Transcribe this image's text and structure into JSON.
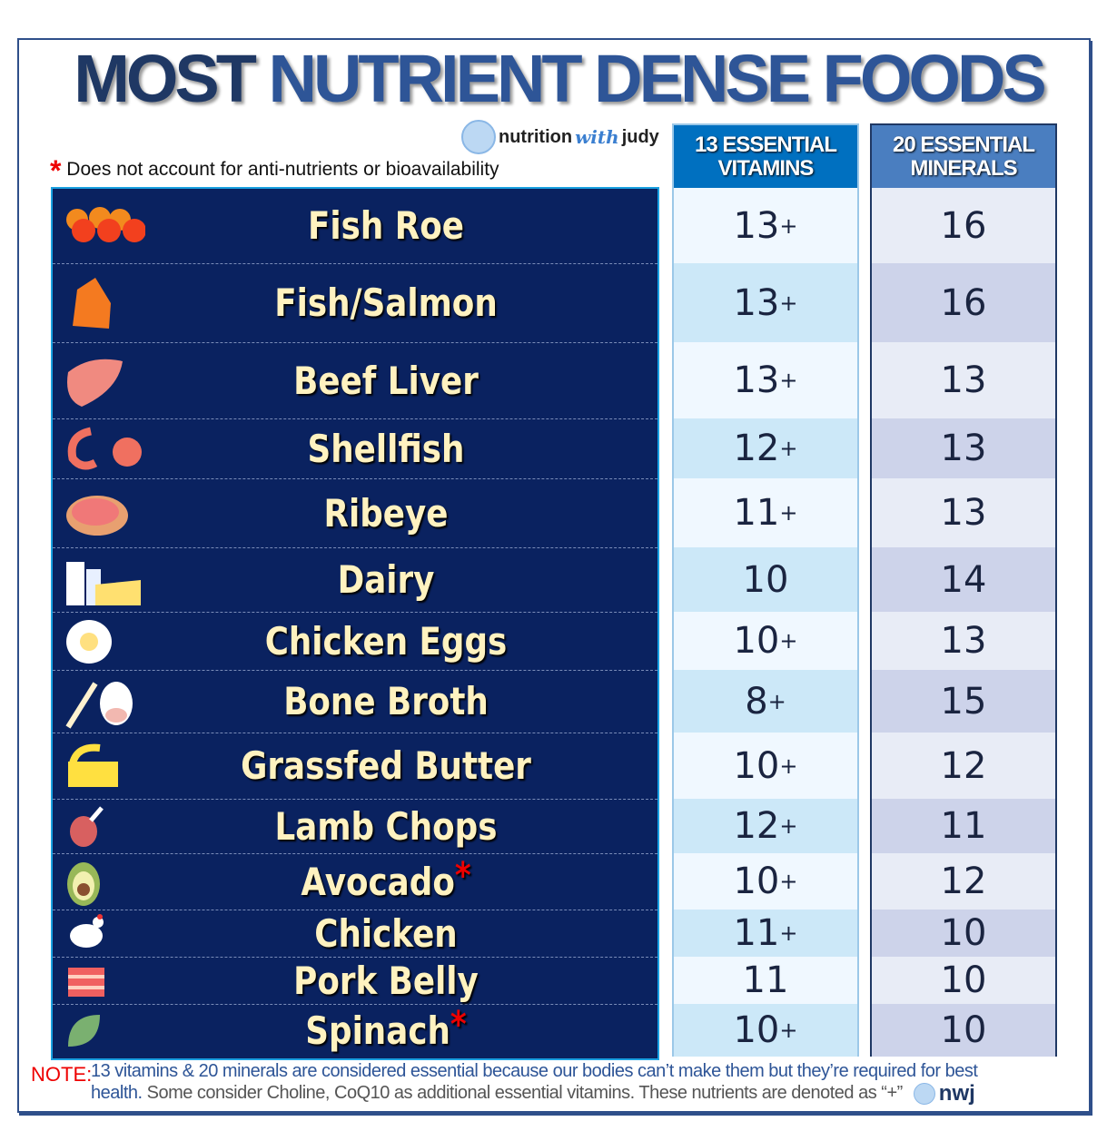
{
  "title": {
    "part1": "MOST",
    "part2": "NUTRIENT DENSE FOODS"
  },
  "logo": {
    "text_a": "nutrition",
    "text_b": "with",
    "text_c": "judy"
  },
  "disclaimer": {
    "marker": "*",
    "text": "Does not account for anti-nutrients or bioavailability"
  },
  "columns": {
    "vitamins": {
      "line1": "13 ESSENTIAL",
      "line2": "VITAMINS"
    },
    "minerals": {
      "line1": "20 ESSENTIAL",
      "line2": "MINERALS"
    }
  },
  "colors": {
    "panel": "#0a2260",
    "food_text": "#fff2c0",
    "vitamin_header": "#0070c0",
    "mineral_header": "#4a7ec0",
    "asterisk": "#ee0000"
  },
  "chart_data": {
    "type": "table",
    "headers": [
      "Food",
      "13 Essential Vitamins",
      "20 Essential Minerals"
    ],
    "rows": [
      {
        "food": "Fish Roe",
        "icon": "fish-roe-icon",
        "vitamins": "13",
        "vit_plus": "+",
        "minerals": "16",
        "flag": ""
      },
      {
        "food": "Fish/Salmon",
        "icon": "salmon-icon",
        "vitamins": "13",
        "vit_plus": "+",
        "minerals": "16",
        "flag": ""
      },
      {
        "food": "Beef Liver",
        "icon": "liver-icon",
        "vitamins": "13",
        "vit_plus": "+",
        "minerals": "13",
        "flag": ""
      },
      {
        "food": "Shellfish",
        "icon": "shrimp-crab-icon",
        "vitamins": "12",
        "vit_plus": "+",
        "minerals": "13",
        "flag": ""
      },
      {
        "food": "Ribeye",
        "icon": "steak-icon",
        "vitamins": "11",
        "vit_plus": "+",
        "minerals": "13",
        "flag": ""
      },
      {
        "food": "Dairy",
        "icon": "milk-cheese-icon",
        "vitamins": "10",
        "vit_plus": "",
        "minerals": "14",
        "flag": ""
      },
      {
        "food": "Chicken Eggs",
        "icon": "egg-icon",
        "vitamins": "10",
        "vit_plus": "+",
        "minerals": "13",
        "flag": ""
      },
      {
        "food": "Bone Broth",
        "icon": "bone-cow-icon",
        "vitamins": "8",
        "vit_plus": "+",
        "minerals": "15",
        "flag": ""
      },
      {
        "food": "Grassfed Butter",
        "icon": "butter-icon",
        "vitamins": "10",
        "vit_plus": "+",
        "minerals": "12",
        "flag": ""
      },
      {
        "food": "Lamb Chops",
        "icon": "lamb-chop-icon",
        "vitamins": "12",
        "vit_plus": "+",
        "minerals": "11",
        "flag": ""
      },
      {
        "food": "Avocado",
        "icon": "avocado-icon",
        "vitamins": "10",
        "vit_plus": "+",
        "minerals": "12",
        "flag": "*"
      },
      {
        "food": "Chicken",
        "icon": "chicken-icon",
        "vitamins": "11",
        "vit_plus": "+",
        "minerals": "10",
        "flag": ""
      },
      {
        "food": "Pork Belly",
        "icon": "bacon-icon",
        "vitamins": "11",
        "vit_plus": "",
        "minerals": "10",
        "flag": ""
      },
      {
        "food": "Spinach",
        "icon": "spinach-leaf-icon",
        "vitamins": "10",
        "vit_plus": "+",
        "minerals": "10",
        "flag": "*"
      }
    ]
  },
  "note": {
    "label": "NOTE:",
    "line1": "13 vitamins & 20 minerals are considered essential because our bodies can’t make them but they’re required for best",
    "line2a": "health.",
    "line2b": " Some consider Choline, CoQ10 as additional essential vitamins. These nutrients are denoted as “+”",
    "brand": "nwj"
  }
}
